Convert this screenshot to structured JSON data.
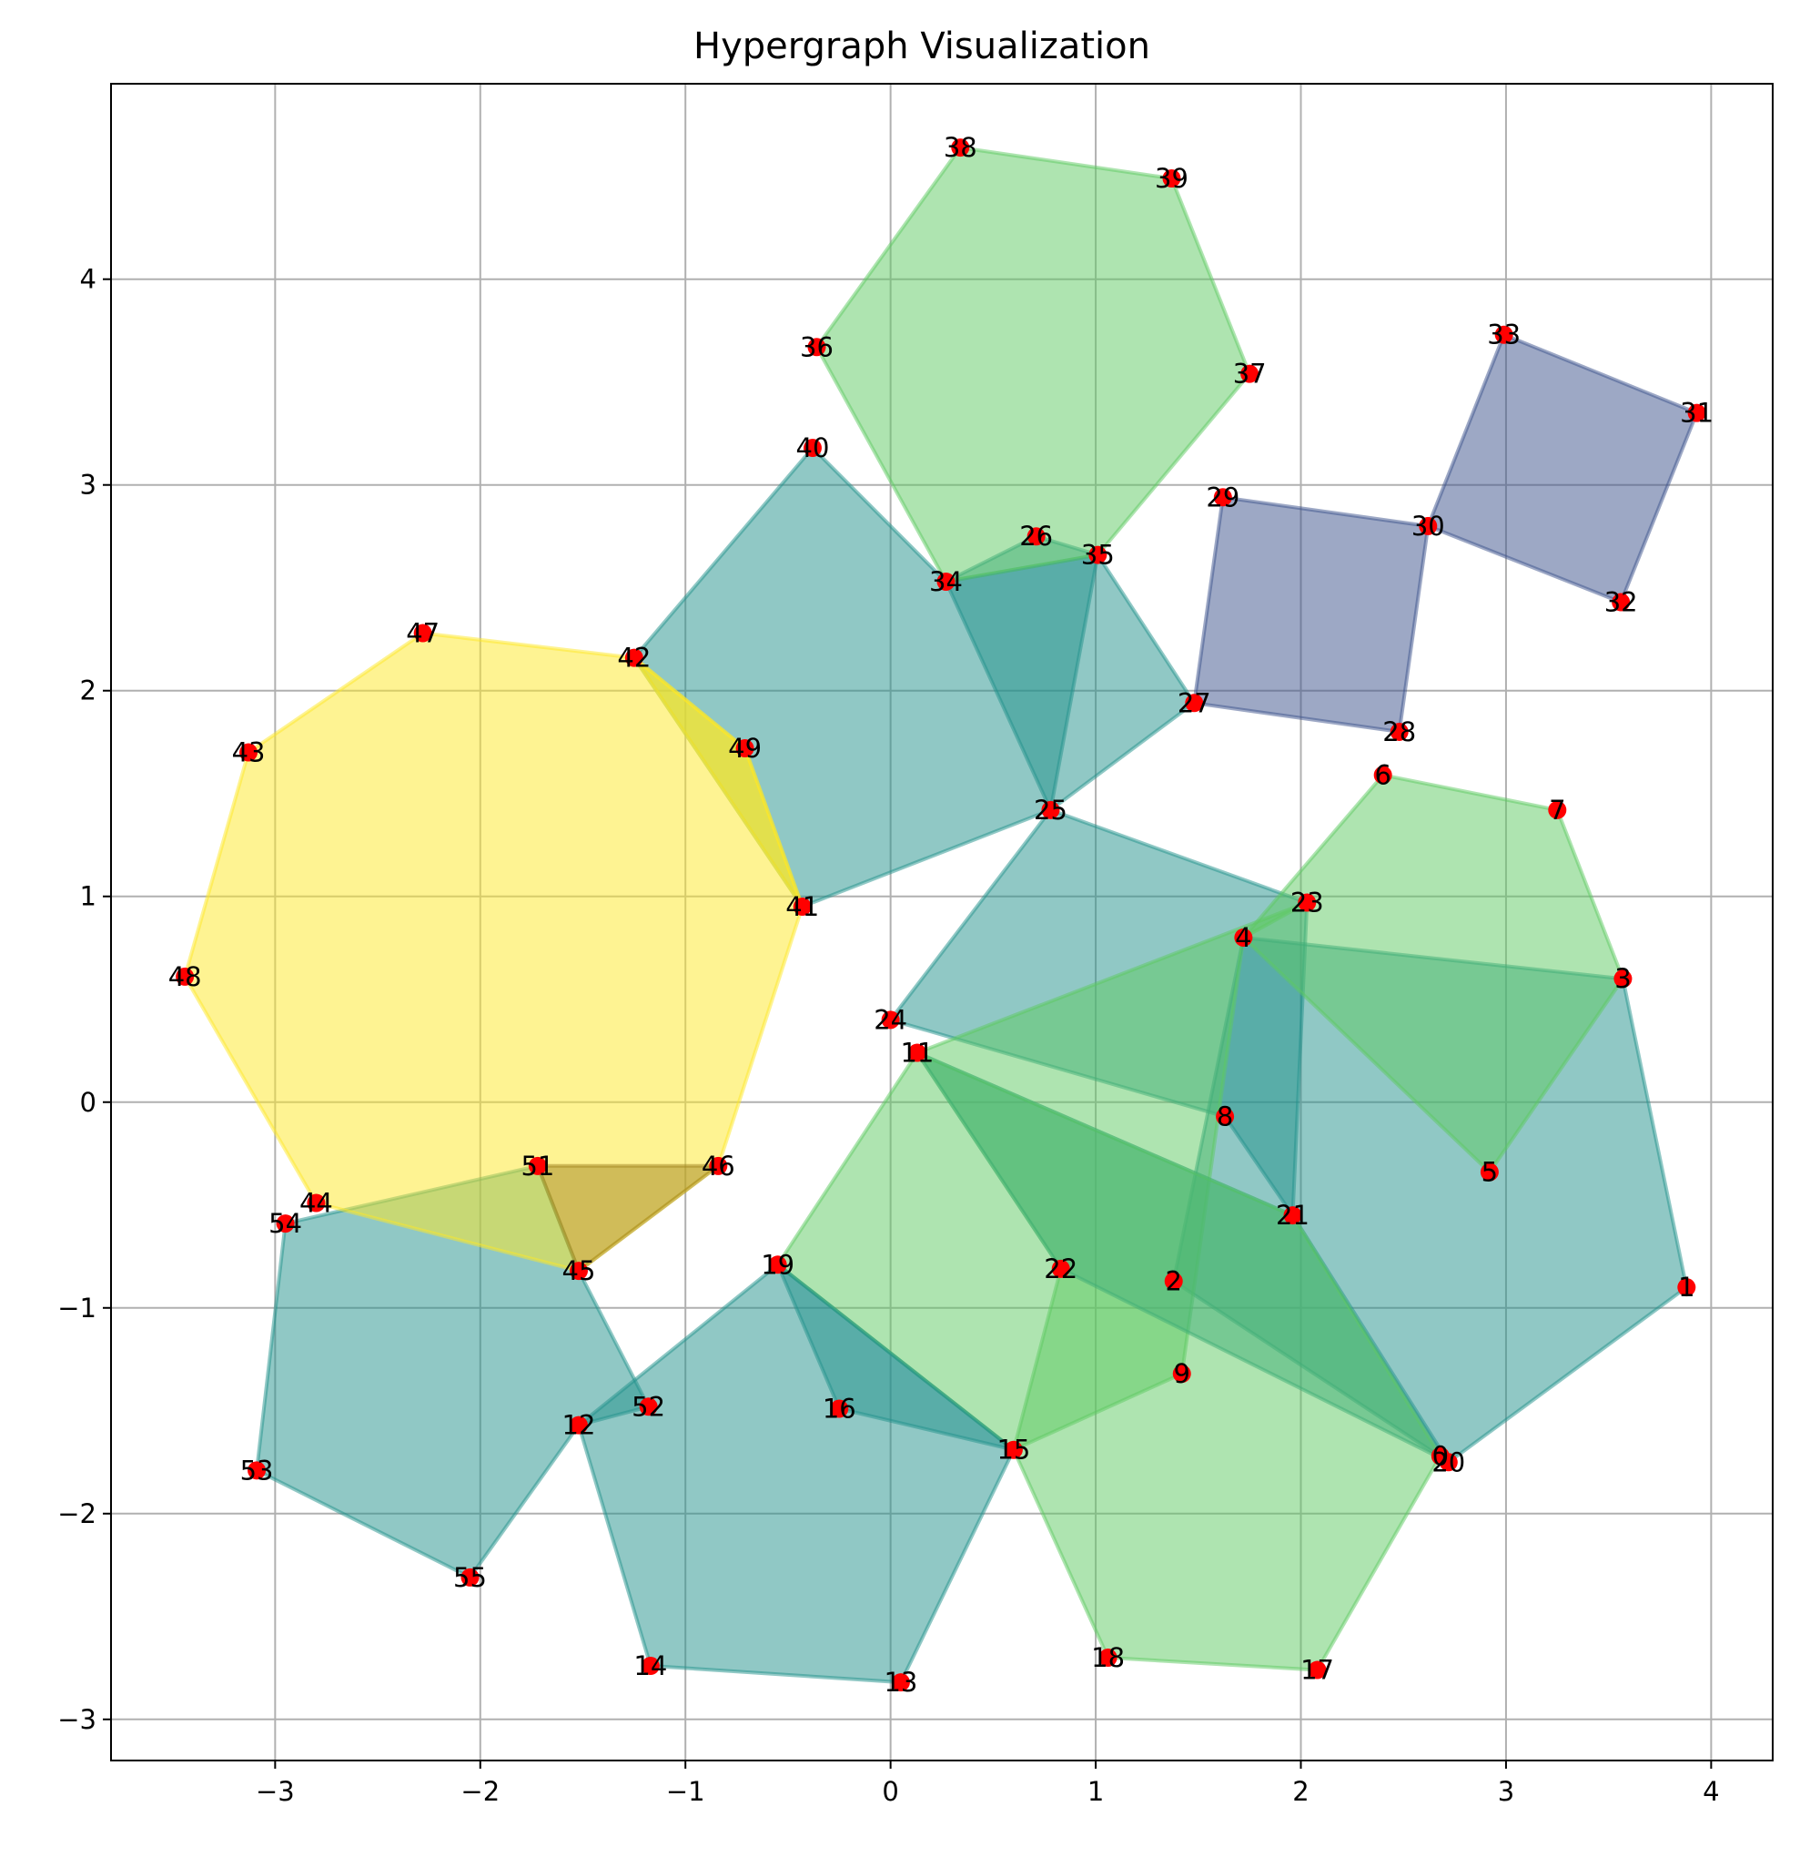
{
  "chart_data": {
    "type": "hypergraph",
    "title": "Hypergraph Visualization",
    "xlim": [
      -3.8,
      4.3
    ],
    "ylim": [
      -3.2,
      4.95
    ],
    "xticks": [
      -3,
      -2,
      -1,
      0,
      1,
      2,
      3,
      4
    ],
    "yticks": [
      -3,
      -2,
      -1,
      0,
      1,
      2,
      3,
      4
    ],
    "grid": true,
    "node_color": "#ff0000",
    "nodes": [
      {
        "id": "0",
        "x": 2.68,
        "y": -1.72
      },
      {
        "id": "1",
        "x": 3.88,
        "y": -0.9
      },
      {
        "id": "2",
        "x": 1.38,
        "y": -0.87
      },
      {
        "id": "3",
        "x": 3.57,
        "y": 0.6
      },
      {
        "id": "4",
        "x": 1.72,
        "y": 0.8
      },
      {
        "id": "5",
        "x": 2.92,
        "y": -0.34
      },
      {
        "id": "6",
        "x": 2.4,
        "y": 1.59
      },
      {
        "id": "7",
        "x": 3.25,
        "y": 1.42
      },
      {
        "id": "8",
        "x": 1.63,
        "y": -0.07
      },
      {
        "id": "9",
        "x": 1.42,
        "y": -1.32
      },
      {
        "id": "11",
        "x": 0.13,
        "y": 0.24
      },
      {
        "id": "12",
        "x": -1.52,
        "y": -1.57
      },
      {
        "id": "13",
        "x": 0.05,
        "y": -2.82
      },
      {
        "id": "14",
        "x": -1.17,
        "y": -2.74
      },
      {
        "id": "15",
        "x": 0.6,
        "y": -1.69
      },
      {
        "id": "16",
        "x": -0.25,
        "y": -1.49
      },
      {
        "id": "17",
        "x": 2.08,
        "y": -2.76
      },
      {
        "id": "18",
        "x": 1.06,
        "y": -2.7
      },
      {
        "id": "19",
        "x": -0.55,
        "y": -0.79
      },
      {
        "id": "20",
        "x": 2.72,
        "y": -1.75
      },
      {
        "id": "21",
        "x": 1.96,
        "y": -0.55
      },
      {
        "id": "22",
        "x": 0.83,
        "y": -0.81
      },
      {
        "id": "23",
        "x": 2.03,
        "y": 0.97
      },
      {
        "id": "24",
        "x": 0.0,
        "y": 0.4
      },
      {
        "id": "25",
        "x": 0.78,
        "y": 1.42
      },
      {
        "id": "26",
        "x": 0.71,
        "y": 2.75
      },
      {
        "id": "27",
        "x": 1.48,
        "y": 1.94
      },
      {
        "id": "28",
        "x": 2.48,
        "y": 1.8
      },
      {
        "id": "29",
        "x": 1.62,
        "y": 2.94
      },
      {
        "id": "30",
        "x": 2.62,
        "y": 2.8
      },
      {
        "id": "31",
        "x": 3.93,
        "y": 3.35
      },
      {
        "id": "32",
        "x": 3.56,
        "y": 2.43
      },
      {
        "id": "33",
        "x": 2.99,
        "y": 3.73
      },
      {
        "id": "34",
        "x": 0.27,
        "y": 2.53
      },
      {
        "id": "35",
        "x": 1.01,
        "y": 2.66
      },
      {
        "id": "36",
        "x": -0.36,
        "y": 3.67
      },
      {
        "id": "37",
        "x": 1.75,
        "y": 3.54
      },
      {
        "id": "38",
        "x": 0.34,
        "y": 4.64
      },
      {
        "id": "39",
        "x": 1.37,
        "y": 4.49
      },
      {
        "id": "40",
        "x": -0.38,
        "y": 3.18
      },
      {
        "id": "41",
        "x": -0.43,
        "y": 0.95
      },
      {
        "id": "42",
        "x": -1.25,
        "y": 2.16
      },
      {
        "id": "43",
        "x": -3.13,
        "y": 1.7
      },
      {
        "id": "44",
        "x": -2.8,
        "y": -0.49
      },
      {
        "id": "45",
        "x": -1.52,
        "y": -0.82
      },
      {
        "id": "46",
        "x": -0.84,
        "y": -0.31
      },
      {
        "id": "47",
        "x": -2.28,
        "y": 2.28
      },
      {
        "id": "48",
        "x": -3.44,
        "y": 0.61
      },
      {
        "id": "49",
        "x": -0.71,
        "y": 1.72
      },
      {
        "id": "51",
        "x": -1.72,
        "y": -0.31
      },
      {
        "id": "52",
        "x": -1.18,
        "y": -1.48
      },
      {
        "id": "53",
        "x": -3.09,
        "y": -1.79
      },
      {
        "id": "54",
        "x": -2.95,
        "y": -0.59
      },
      {
        "id": "55",
        "x": -2.05,
        "y": -2.31
      }
    ],
    "hyperedges": [
      {
        "nodes": [
          "40",
          "42",
          "41",
          "25",
          "27",
          "35",
          "34"
        ],
        "color": "#21918c"
      },
      {
        "nodes": [
          "34",
          "26",
          "35",
          "25"
        ],
        "color": "#21918c"
      },
      {
        "nodes": [
          "36",
          "38",
          "39",
          "37",
          "35",
          "34"
        ],
        "color": "#5ec962"
      },
      {
        "nodes": [
          "29",
          "30",
          "28",
          "27"
        ],
        "color": "#3b528b"
      },
      {
        "nodes": [
          "33",
          "31",
          "32",
          "30"
        ],
        "color": "#3b528b"
      },
      {
        "nodes": [
          "24",
          "25",
          "23",
          "21",
          "8"
        ],
        "color": "#21918c"
      },
      {
        "nodes": [
          "4",
          "3",
          "1",
          "20",
          "2"
        ],
        "color": "#21918c"
      },
      {
        "nodes": [
          "6",
          "7",
          "3",
          "5",
          "4"
        ],
        "color": "#5ec962"
      },
      {
        "nodes": [
          "23",
          "4",
          "9",
          "15",
          "22",
          "11"
        ],
        "color": "#5ec962"
      },
      {
        "nodes": [
          "11",
          "21",
          "20",
          "22"
        ],
        "color": "#21918c"
      },
      {
        "nodes": [
          "19",
          "15",
          "16"
        ],
        "color": "#21918c"
      },
      {
        "nodes": [
          "21",
          "0",
          "17",
          "18",
          "15",
          "19",
          "11"
        ],
        "color": "#5ec962"
      },
      {
        "nodes": [
          "19",
          "15",
          "13",
          "14",
          "12"
        ],
        "color": "#21918c"
      },
      {
        "nodes": [
          "54",
          "51",
          "45",
          "52",
          "12",
          "55",
          "53"
        ],
        "color": "#21918c"
      },
      {
        "nodes": [
          "47",
          "42",
          "49",
          "41",
          "46",
          "45",
          "44",
          "48",
          "43"
        ],
        "color": "#fde725"
      },
      {
        "nodes": [
          "42",
          "49",
          "41"
        ],
        "color": "#fde725"
      },
      {
        "nodes": [
          "51",
          "46",
          "45"
        ],
        "color": "#a1861f"
      }
    ]
  }
}
